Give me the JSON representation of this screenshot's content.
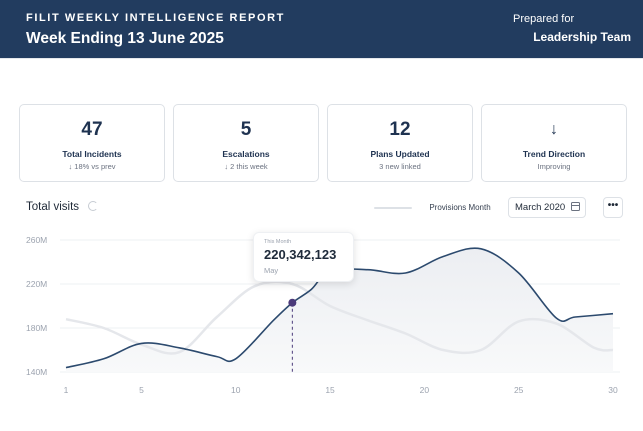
{
  "header": {
    "report_label": "FILIT WEEKLY INTELLIGENCE REPORT",
    "title": "Week Ending 13 June 2025",
    "prepared_for_label": "Prepared for",
    "prepared_for_value": "Leadership Team"
  },
  "cards": [
    {
      "value": "47",
      "label": "Total Incidents",
      "sub": "↓ 18% vs prev"
    },
    {
      "value": "5",
      "label": "Escalations",
      "sub": "↓ 2 this week"
    },
    {
      "value": "12",
      "label": "Plans Updated",
      "sub": "3 new linked"
    },
    {
      "value": "↓",
      "label": "Trend Direction",
      "sub": "Improving"
    }
  ],
  "visits": {
    "title": "Total visits",
    "provisions_label": "Provisions Month",
    "date_label": "March 2020",
    "more_label": "•••"
  },
  "tooltip": {
    "caption": "This Month",
    "value": "220,342,123",
    "month": "May"
  },
  "colors": {
    "header_bg": "#223c5f",
    "primary_line": "#2c4a6e",
    "secondary_line": "#e5e7eb",
    "marker": "#4b3a7a"
  },
  "chart_data": {
    "type": "area",
    "y_ticks": [
      "260M",
      "220M",
      "180M",
      "140M"
    ],
    "x_ticks": [
      "1",
      "5",
      "10",
      "15",
      "20",
      "25",
      "30"
    ],
    "ylim": [
      140,
      260
    ],
    "xlim": [
      1,
      30
    ],
    "grid": true,
    "series": [
      {
        "x": [
          1,
          3,
          5,
          7,
          9,
          10,
          12,
          13,
          14,
          15,
          17,
          19,
          21,
          23,
          25,
          27,
          28,
          30
        ],
        "values": [
          144,
          152,
          166,
          162,
          154,
          152,
          187,
          203,
          215,
          232,
          233,
          230,
          245,
          252,
          230,
          189,
          190,
          193
        ]
      },
      {
        "x": [
          1,
          3,
          5,
          7,
          9,
          11,
          13,
          15,
          17,
          19,
          21,
          23,
          25,
          27,
          29,
          30
        ],
        "values": [
          188,
          180,
          165,
          158,
          190,
          218,
          220,
          200,
          187,
          175,
          160,
          160,
          186,
          184,
          162,
          160
        ]
      }
    ],
    "highlight": {
      "x": 13,
      "value": 203
    }
  }
}
